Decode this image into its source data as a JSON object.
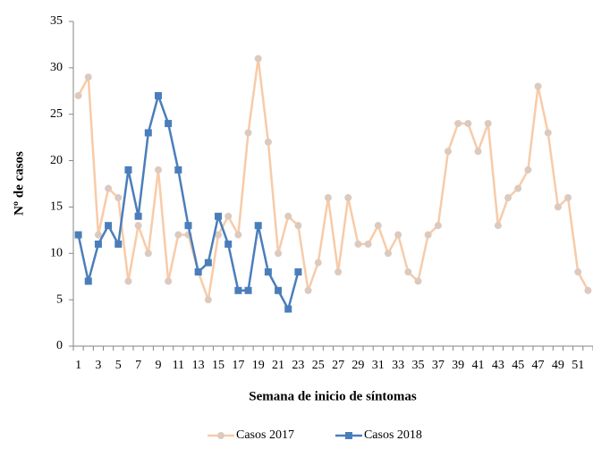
{
  "chart_data": {
    "type": "line",
    "y_label": "Nº de casos",
    "x_label": "Semana de inicio de síntomas",
    "categories": [
      1,
      null,
      3,
      null,
      5,
      null,
      7,
      null,
      9,
      null,
      11,
      null,
      13,
      null,
      15,
      null,
      17,
      null,
      19,
      null,
      21,
      null,
      23,
      null,
      25,
      null,
      27,
      null,
      29,
      null,
      31,
      null,
      33,
      null,
      35,
      null,
      37,
      null,
      39,
      null,
      41,
      null,
      43,
      null,
      45,
      null,
      47,
      null,
      49,
      null,
      51,
      null
    ],
    "series": [
      {
        "name": "Casos 2017",
        "color": "#f8cba8",
        "marker": "circle",
        "marker_color": "#dccabf",
        "values": [
          27,
          29,
          12,
          17,
          16,
          7,
          13,
          10,
          19,
          7,
          12,
          12,
          8,
          5,
          12,
          14,
          12,
          23,
          31,
          22,
          10,
          14,
          13,
          6,
          9,
          16,
          8,
          16,
          11,
          11,
          13,
          10,
          12,
          8,
          7,
          12,
          13,
          21,
          24,
          24,
          21,
          24,
          13,
          16,
          17,
          19,
          28,
          23,
          15,
          16,
          8,
          6
        ]
      },
      {
        "name": "Casos 2018",
        "color": "#4a7ebb",
        "marker": "square",
        "marker_color": "#4a7ebb",
        "values": [
          12,
          7,
          11,
          13,
          11,
          19,
          14,
          23,
          27,
          24,
          19,
          13,
          8,
          9,
          14,
          11,
          6,
          6,
          13,
          8,
          6,
          4,
          8,
          null,
          null,
          null,
          null,
          null,
          null,
          null,
          null,
          null,
          null,
          null,
          null,
          null,
          null,
          null,
          null,
          null,
          null,
          null,
          null,
          null,
          null,
          null,
          null,
          null,
          null,
          null,
          null,
          null
        ]
      }
    ],
    "ylim": [
      0,
      35
    ],
    "yticks": [
      0,
      5,
      10,
      15,
      20,
      25,
      30,
      35
    ],
    "grid": false,
    "legend": "bottom"
  }
}
